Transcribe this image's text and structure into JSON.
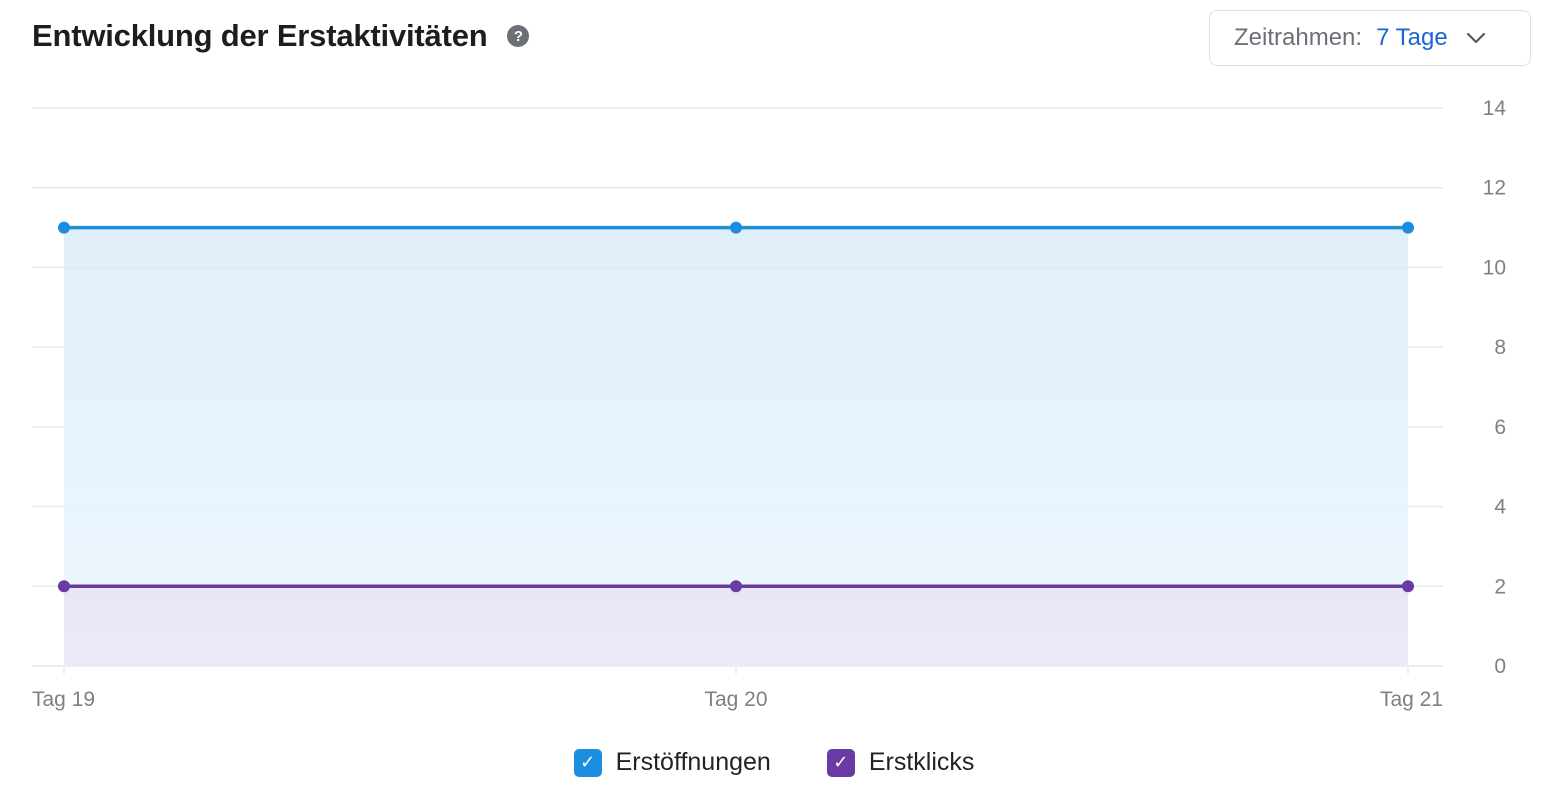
{
  "header": {
    "title": "Entwicklung der Erstaktivitäten",
    "help_icon_glyph": "?"
  },
  "timeframe": {
    "label": "Zeitrahmen:",
    "value": "7 Tage"
  },
  "colors": {
    "opens": "#1a8fe0",
    "clicks": "#6a3aa5",
    "grid": "#e6e8eb",
    "text_muted": "#7c8087"
  },
  "legend": [
    {
      "label": "Erstöffnungen",
      "color": "#1a8fe0",
      "checked": true,
      "check_glyph": "✓"
    },
    {
      "label": "Erstklicks",
      "color": "#6a3aa5",
      "checked": true,
      "check_glyph": "✓"
    }
  ],
  "chart_data": {
    "type": "area",
    "title": "Entwicklung der Erstaktivitäten",
    "categories": [
      "Tag 19",
      "Tag 20",
      "Tag 21"
    ],
    "series": [
      {
        "name": "Erstöffnungen",
        "values": [
          11,
          11,
          11
        ],
        "color": "#1a8fe0"
      },
      {
        "name": "Erstklicks",
        "values": [
          2,
          2,
          2
        ],
        "color": "#6a3aa5"
      }
    ],
    "y_ticks": [
      0,
      2,
      4,
      6,
      8,
      10,
      12,
      14
    ],
    "ylim": [
      0,
      14
    ],
    "y_axis_side": "right",
    "grid": true,
    "legend_position": "bottom-center"
  }
}
